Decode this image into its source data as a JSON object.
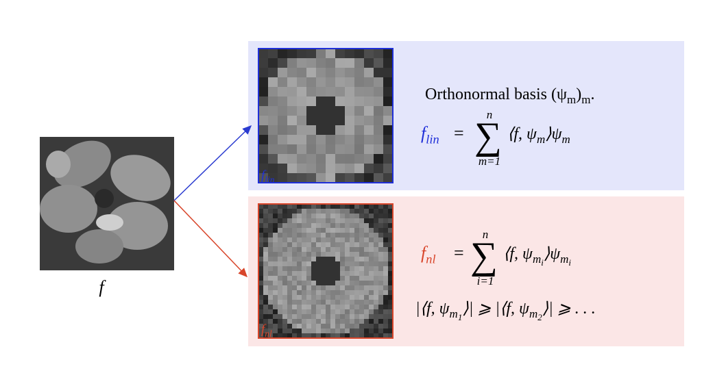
{
  "source": {
    "label": "f"
  },
  "linear": {
    "image_label": [
      {
        "text": "f"
      },
      {
        "sub": "lin"
      }
    ],
    "basis_text": [
      {
        "text": "Orthonormal basis (ψ"
      },
      {
        "sub": "m"
      },
      {
        "text": ")"
      },
      {
        "sub": "m"
      },
      {
        "text": "."
      }
    ],
    "lhs": [
      {
        "text": "f"
      },
      {
        "sub": "lin"
      }
    ],
    "equals": "=",
    "sum": "∑",
    "sum_upper": "n",
    "sum_lower": "m=1",
    "rhs": [
      {
        "text": "⟨f, ψ"
      },
      {
        "sub": "m"
      },
      {
        "text": "⟩ψ"
      },
      {
        "sub": "m"
      }
    ]
  },
  "nonlinear": {
    "image_label": [
      {
        "text": "f"
      },
      {
        "sub": "nl"
      }
    ],
    "lhs": [
      {
        "text": "f"
      },
      {
        "sub": "nl"
      }
    ],
    "equals": "=",
    "sum": "∑",
    "sum_upper": "n",
    "sum_lower": "i=1",
    "rhs": [
      {
        "text": "⟨f, ψ"
      },
      {
        "sub": "m"
      },
      {
        "subsub": "i"
      },
      {
        "text": "⟩ψ"
      },
      {
        "sub": "m"
      },
      {
        "subsub": "i"
      }
    ],
    "ordering": [
      {
        "text": "|⟨f, ψ"
      },
      {
        "sub": "m"
      },
      {
        "subsub": "1"
      },
      {
        "text": "⟩| ⩾ |⟨f, ψ"
      },
      {
        "sub": "m"
      },
      {
        "subsub": "2"
      },
      {
        "text": "⟩| ⩾ . . ."
      }
    ]
  }
}
